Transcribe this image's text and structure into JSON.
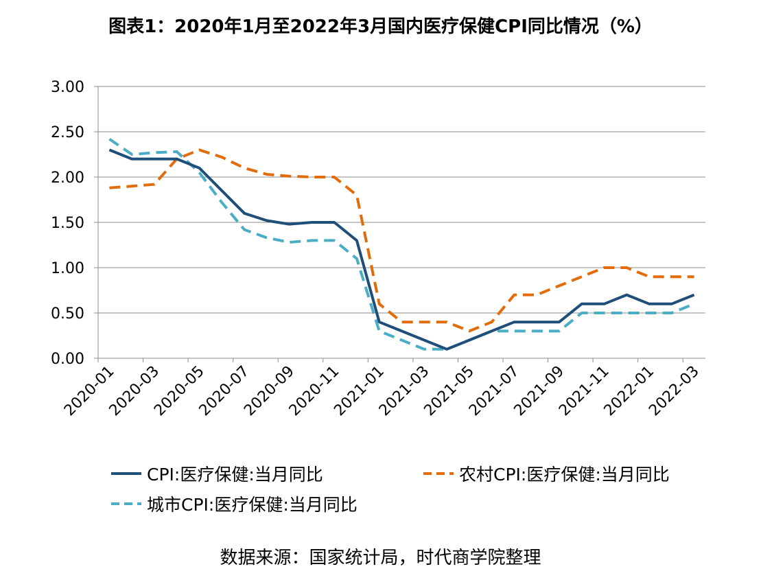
{
  "title": "图表1：2020年1月至2022年3月国内医疗保健CPI同比情况（%）",
  "source": "数据来源：国家统计局，时代商学院整理",
  "chart_data": {
    "type": "line",
    "title": "图表1：2020年1月至2022年3月国内医疗保健CPI同比情况（%）",
    "xlabel": "",
    "ylabel": "",
    "ylim": [
      0,
      3
    ],
    "yticks": [
      "3.00",
      "2.50",
      "2.00",
      "1.50",
      "1.00",
      "0.50",
      "0.00"
    ],
    "ytick_values": [
      3.0,
      2.5,
      2.0,
      1.5,
      1.0,
      0.5,
      0.0
    ],
    "grid": true,
    "legend_position": "bottom",
    "categories": [
      "2020-01",
      "2020-02",
      "2020-03",
      "2020-04",
      "2020-05",
      "2020-06",
      "2020-07",
      "2020-08",
      "2020-09",
      "2020-10",
      "2020-11",
      "2020-12",
      "2021-01",
      "2021-02",
      "2021-03",
      "2021-04",
      "2021-05",
      "2021-06",
      "2021-07",
      "2021-08",
      "2021-09",
      "2021-10",
      "2021-11",
      "2021-12",
      "2022-01",
      "2022-02",
      "2022-03"
    ],
    "xtick_labels": [
      "2020-01",
      "2020-03",
      "2020-05",
      "2020-07",
      "2020-09",
      "2020-11",
      "2021-01",
      "2021-03",
      "2021-05",
      "2021-07",
      "2021-09",
      "2021-11",
      "2022-01",
      "2022-03"
    ],
    "series": [
      {
        "name": "CPI:医疗保健:当月同比",
        "color": "#1f4e79",
        "style": "solid",
        "values": [
          2.3,
          2.2,
          2.2,
          2.2,
          2.1,
          1.85,
          1.6,
          1.52,
          1.48,
          1.5,
          1.5,
          1.3,
          0.4,
          0.3,
          0.2,
          0.1,
          0.2,
          0.3,
          0.4,
          0.4,
          0.4,
          0.6,
          0.6,
          0.7,
          0.6,
          0.6,
          0.7
        ]
      },
      {
        "name": "农村CPI:医疗保健:当月同比",
        "color": "#e36c0a",
        "style": "dashed",
        "values": [
          1.88,
          1.9,
          1.92,
          2.2,
          2.3,
          2.22,
          2.1,
          2.03,
          2.01,
          2.0,
          2.0,
          1.8,
          0.6,
          0.4,
          0.4,
          0.4,
          0.3,
          0.4,
          0.7,
          0.7,
          0.8,
          0.9,
          1.0,
          1.0,
          0.9,
          0.9,
          0.9
        ]
      },
      {
        "name": "城市CPI:医疗保健:当月同比",
        "color": "#4bacc6",
        "style": "dashed",
        "values": [
          2.42,
          2.25,
          2.27,
          2.28,
          2.05,
          1.72,
          1.42,
          1.33,
          1.28,
          1.3,
          1.3,
          1.1,
          0.3,
          0.2,
          0.1,
          0.1,
          0.2,
          0.3,
          0.3,
          0.3,
          0.3,
          0.5,
          0.5,
          0.5,
          0.5,
          0.5,
          0.6
        ]
      }
    ]
  }
}
